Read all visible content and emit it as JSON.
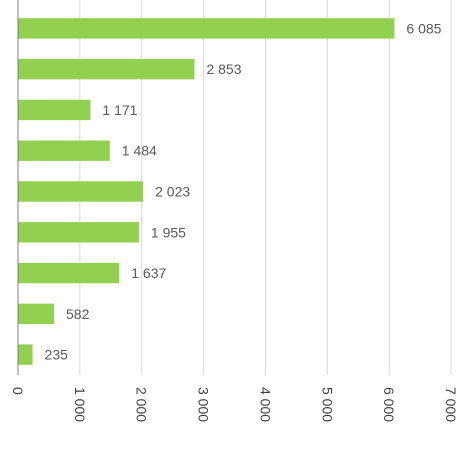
{
  "chart_data": {
    "type": "bar",
    "orientation": "horizontal",
    "categories": [
      "",
      "",
      "",
      "",
      "",
      "",
      "",
      "",
      ""
    ],
    "values": [
      6085,
      2853,
      1171,
      1484,
      2023,
      1955,
      1637,
      582,
      235
    ],
    "value_labels": [
      "6 085",
      "2 853",
      "1 171",
      "1 484",
      "2 023",
      "1 955",
      "1 637",
      "582",
      "235"
    ],
    "xlim": [
      0,
      7000
    ],
    "x_ticks": [
      0,
      1000,
      2000,
      3000,
      4000,
      5000,
      6000,
      7000
    ],
    "x_tick_labels": [
      "0",
      "1 000",
      "2 000",
      "3 000",
      "4 000",
      "5 000",
      "6 000",
      "7 000"
    ],
    "x_tick_rotation": "vertical",
    "grid": "vertical",
    "legend": "none",
    "bar_color": "#92D050",
    "grid_color": "#D9D9D9",
    "axis_color": "#7F7F7F",
    "text_color": "#404040"
  }
}
